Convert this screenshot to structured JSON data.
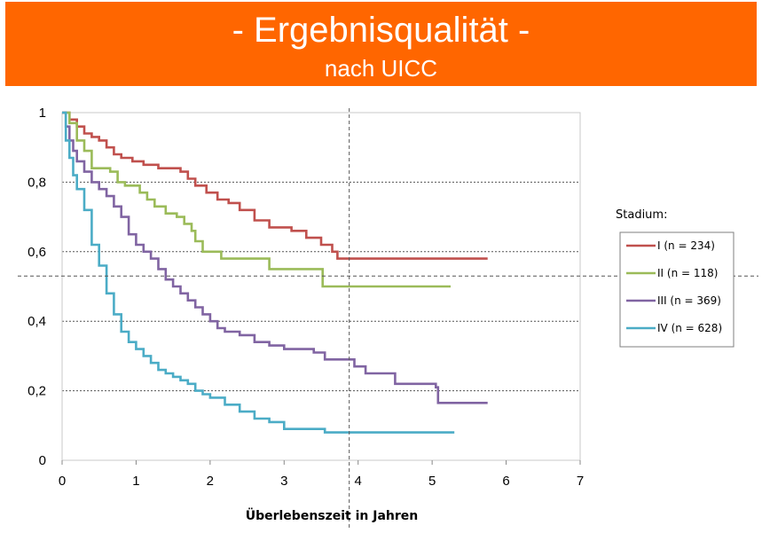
{
  "header": {
    "title": "- Ergebnisqualität -",
    "subtitle": "nach UICC",
    "background": "#ff6600"
  },
  "chart_data": {
    "type": "line",
    "subtype": "kaplan-meier step curves",
    "xlabel": "Überlebenszeit in Jahren",
    "ylabel": "",
    "xlim": [
      0,
      7
    ],
    "ylim": [
      0,
      1
    ],
    "x_ticks": [
      0,
      1,
      2,
      3,
      4,
      5,
      6,
      7
    ],
    "x_tick_labels": [
      "0",
      "1",
      "2",
      "3",
      "4",
      "5",
      "6",
      "7"
    ],
    "y_ticks": [
      0,
      0.2,
      0.4,
      0.6,
      0.8,
      1
    ],
    "y_tick_labels": [
      "0",
      "0,2",
      "0,4",
      "0,6",
      "0,8",
      "1"
    ],
    "grid": "horizontal dashed",
    "legend_title": "Stadium:",
    "legend_position": "right",
    "reference_lines": {
      "x": 3.88,
      "y": 0.53
    },
    "series": [
      {
        "name": "I (n = 234)",
        "color": "#c0504d",
        "points": [
          [
            0,
            1
          ],
          [
            0.1,
            0.98
          ],
          [
            0.2,
            0.96
          ],
          [
            0.3,
            0.94
          ],
          [
            0.4,
            0.93
          ],
          [
            0.5,
            0.92
          ],
          [
            0.6,
            0.9
          ],
          [
            0.7,
            0.88
          ],
          [
            0.8,
            0.87
          ],
          [
            0.95,
            0.86
          ],
          [
            1.1,
            0.85
          ],
          [
            1.3,
            0.84
          ],
          [
            1.5,
            0.84
          ],
          [
            1.6,
            0.83
          ],
          [
            1.7,
            0.81
          ],
          [
            1.8,
            0.79
          ],
          [
            1.95,
            0.77
          ],
          [
            2.1,
            0.75
          ],
          [
            2.25,
            0.74
          ],
          [
            2.4,
            0.72
          ],
          [
            2.6,
            0.69
          ],
          [
            2.8,
            0.67
          ],
          [
            3.1,
            0.66
          ],
          [
            3.3,
            0.64
          ],
          [
            3.5,
            0.62
          ],
          [
            3.65,
            0.6
          ],
          [
            3.72,
            0.58
          ],
          [
            5.75,
            0.58
          ]
        ]
      },
      {
        "name": "II (n = 118)",
        "color": "#9bbb59",
        "points": [
          [
            0,
            1
          ],
          [
            0.1,
            0.97
          ],
          [
            0.2,
            0.92
          ],
          [
            0.3,
            0.89
          ],
          [
            0.4,
            0.84
          ],
          [
            0.65,
            0.83
          ],
          [
            0.75,
            0.8
          ],
          [
            0.85,
            0.79
          ],
          [
            1.05,
            0.77
          ],
          [
            1.15,
            0.75
          ],
          [
            1.25,
            0.73
          ],
          [
            1.4,
            0.71
          ],
          [
            1.55,
            0.7
          ],
          [
            1.65,
            0.68
          ],
          [
            1.75,
            0.66
          ],
          [
            1.8,
            0.63
          ],
          [
            1.9,
            0.6
          ],
          [
            2.15,
            0.58
          ],
          [
            2.8,
            0.55
          ],
          [
            3.52,
            0.5
          ],
          [
            5.25,
            0.5
          ]
        ]
      },
      {
        "name": "III (n = 369)",
        "color": "#8064a2",
        "points": [
          [
            0,
            1
          ],
          [
            0.05,
            0.96
          ],
          [
            0.1,
            0.92
          ],
          [
            0.15,
            0.89
          ],
          [
            0.2,
            0.86
          ],
          [
            0.3,
            0.83
          ],
          [
            0.4,
            0.8
          ],
          [
            0.5,
            0.78
          ],
          [
            0.6,
            0.76
          ],
          [
            0.7,
            0.73
          ],
          [
            0.8,
            0.7
          ],
          [
            0.9,
            0.65
          ],
          [
            1,
            0.62
          ],
          [
            1.1,
            0.6
          ],
          [
            1.2,
            0.58
          ],
          [
            1.3,
            0.55
          ],
          [
            1.4,
            0.52
          ],
          [
            1.5,
            0.5
          ],
          [
            1.6,
            0.48
          ],
          [
            1.7,
            0.46
          ],
          [
            1.8,
            0.44
          ],
          [
            1.9,
            0.42
          ],
          [
            2,
            0.4
          ],
          [
            2.1,
            0.38
          ],
          [
            2.2,
            0.37
          ],
          [
            2.4,
            0.36
          ],
          [
            2.6,
            0.34
          ],
          [
            2.8,
            0.33
          ],
          [
            3,
            0.32
          ],
          [
            3.4,
            0.31
          ],
          [
            3.55,
            0.29
          ],
          [
            3.95,
            0.27
          ],
          [
            4.1,
            0.25
          ],
          [
            4.5,
            0.22
          ],
          [
            5.05,
            0.21
          ],
          [
            5.08,
            0.165
          ],
          [
            5.75,
            0.165
          ]
        ]
      },
      {
        "name": "IV (n = 628)",
        "color": "#4bacc6",
        "points": [
          [
            0,
            1
          ],
          [
            0.05,
            0.92
          ],
          [
            0.1,
            0.87
          ],
          [
            0.15,
            0.82
          ],
          [
            0.2,
            0.78
          ],
          [
            0.3,
            0.72
          ],
          [
            0.4,
            0.62
          ],
          [
            0.5,
            0.56
          ],
          [
            0.6,
            0.48
          ],
          [
            0.7,
            0.42
          ],
          [
            0.8,
            0.37
          ],
          [
            0.9,
            0.34
          ],
          [
            1,
            0.32
          ],
          [
            1.1,
            0.3
          ],
          [
            1.2,
            0.28
          ],
          [
            1.3,
            0.26
          ],
          [
            1.4,
            0.25
          ],
          [
            1.5,
            0.24
          ],
          [
            1.6,
            0.23
          ],
          [
            1.7,
            0.22
          ],
          [
            1.8,
            0.2
          ],
          [
            1.9,
            0.19
          ],
          [
            2,
            0.18
          ],
          [
            2.2,
            0.16
          ],
          [
            2.4,
            0.14
          ],
          [
            2.6,
            0.12
          ],
          [
            2.8,
            0.11
          ],
          [
            3,
            0.09
          ],
          [
            3.55,
            0.08
          ],
          [
            5.3,
            0.08
          ]
        ]
      }
    ]
  }
}
